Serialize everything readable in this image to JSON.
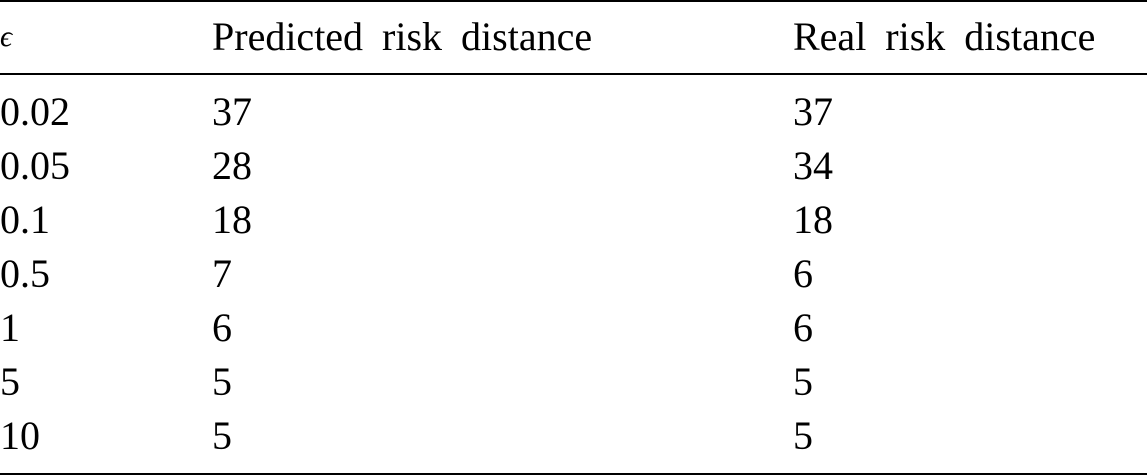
{
  "table": {
    "header": [
      "ϵ",
      "Predicted risk distance",
      "Real risk distance"
    ],
    "rows": [
      [
        0.02,
        37,
        37
      ],
      [
        0.05,
        28,
        34
      ],
      [
        0.1,
        18,
        18
      ],
      [
        0.5,
        7,
        6
      ],
      [
        1,
        6,
        6
      ],
      [
        5,
        5,
        5
      ],
      [
        10,
        5,
        5
      ]
    ]
  }
}
